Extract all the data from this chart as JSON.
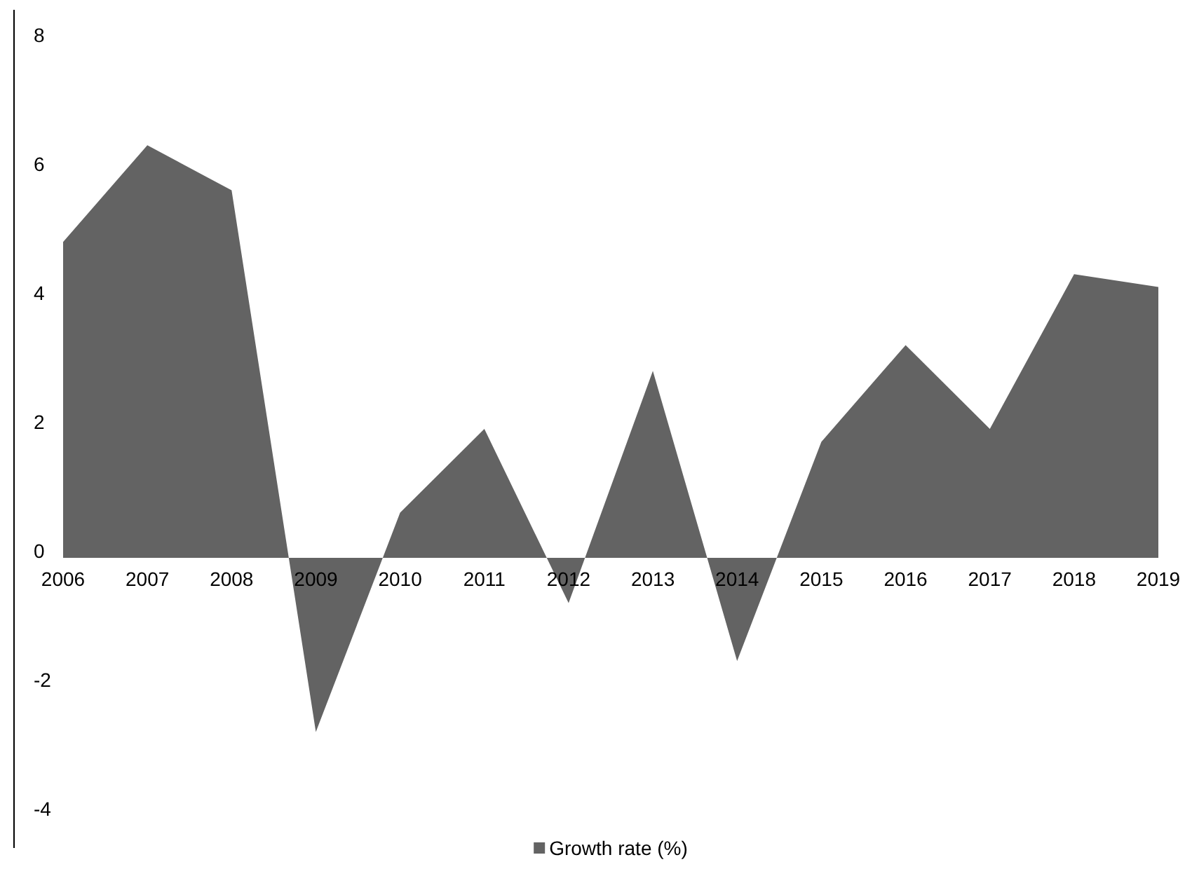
{
  "chart_data": {
    "type": "area",
    "categories": [
      "2006",
      "2007",
      "2008",
      "2009",
      "2010",
      "2011",
      "2012",
      "2013",
      "2014",
      "2015",
      "2016",
      "2017",
      "2018",
      "2019"
    ],
    "series": [
      {
        "name": "Growth rate (%)",
        "color": "#636363",
        "values": [
          4.9,
          6.4,
          5.7,
          -2.7,
          0.7,
          2.0,
          -0.7,
          2.9,
          -1.6,
          1.8,
          3.3,
          2.0,
          4.4,
          4.2
        ]
      }
    ],
    "ylim": [
      -4.5,
      8.5
    ],
    "yticks": [
      -4,
      -2,
      0,
      2,
      4,
      6,
      8
    ],
    "grid": false,
    "legend": "bottom"
  }
}
